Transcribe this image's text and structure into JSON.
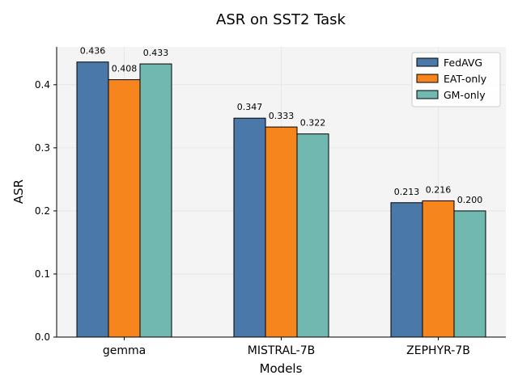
{
  "chart_data": {
    "type": "bar",
    "title": "ASR on SST2 Task",
    "xlabel": "Models",
    "ylabel": "ASR",
    "categories": [
      "gemma",
      "MISTRAL-7B",
      "ZEPHYR-7B"
    ],
    "series": [
      {
        "name": "FedAVG",
        "values": [
          0.436,
          0.347,
          0.213
        ],
        "color": "#4a78a8"
      },
      {
        "name": "EAT-only",
        "values": [
          0.408,
          0.333,
          0.216
        ],
        "color": "#f5851c"
      },
      {
        "name": "GM-only",
        "values": [
          0.433,
          0.322,
          0.2
        ],
        "color": "#70b8b0"
      }
    ],
    "value_labels": [
      [
        "0.436",
        "0.347",
        "0.213"
      ],
      [
        "0.408",
        "0.333",
        "0.216"
      ],
      [
        "0.433",
        "0.322",
        "0.200"
      ]
    ],
    "ylim": [
      0,
      0.46
    ],
    "yticks": [
      0.0,
      0.1,
      0.2,
      0.3,
      0.4
    ],
    "ytick_labels": [
      "0.0",
      "0.1",
      "0.2",
      "0.3",
      "0.4"
    ],
    "grid": true,
    "legend_position": "top-right",
    "plot_background": "#f4f4f4"
  }
}
